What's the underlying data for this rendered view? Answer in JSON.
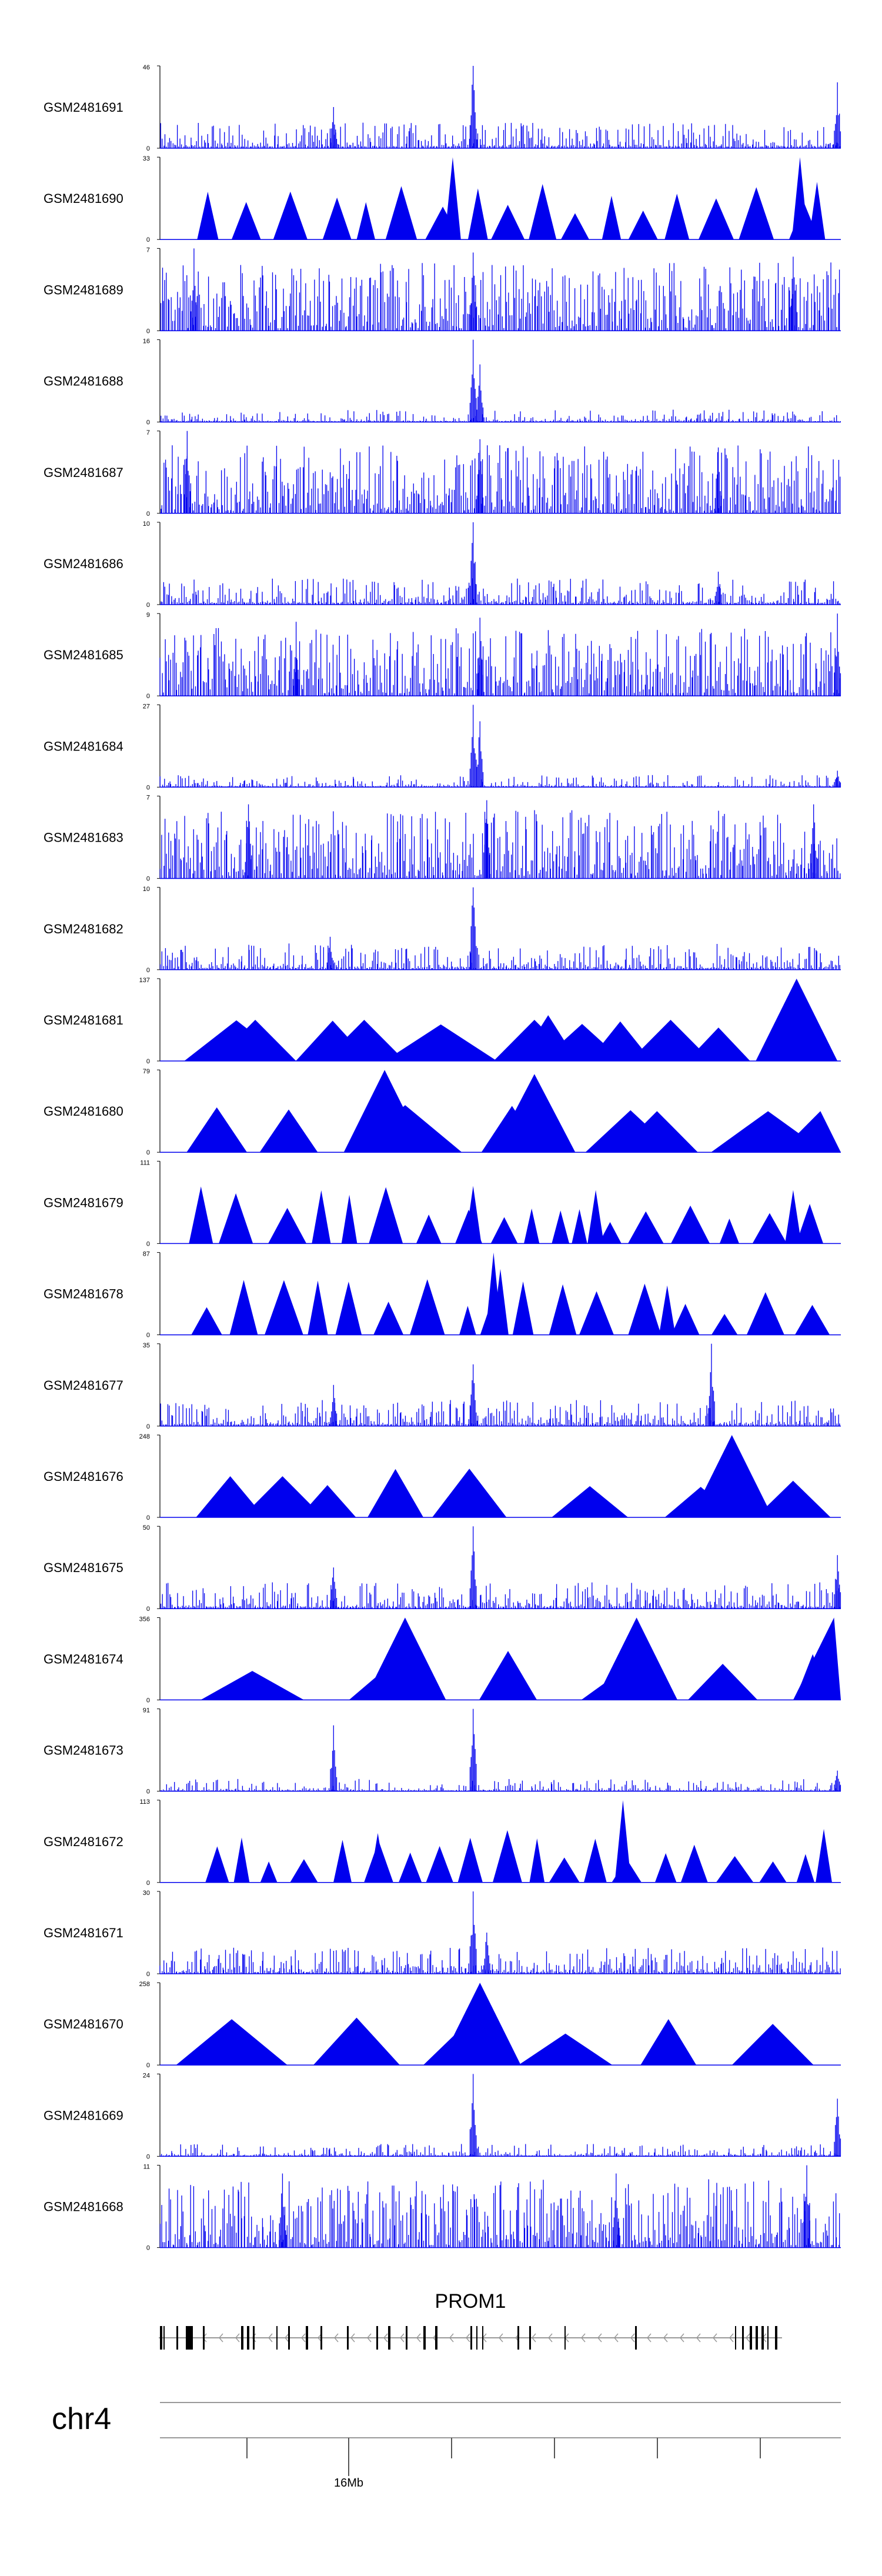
{
  "chart_data": {
    "type": "area",
    "title": "",
    "chromosome": "chr4",
    "x_tick_label": "16Mb",
    "colors": {
      "signal": "#0000ee",
      "axis": "#000000",
      "gene": "#000000",
      "intron": "#999999"
    },
    "style_codes": {
      "n": "noisy dense signal with one central peak",
      "u": "uniformly dense noisy signal",
      "c": "sparse signal with concentrated central peak",
      "t": "sparse triangular blocks (low coverage)",
      "w": "wide triangular blocks (very low coverage)"
    },
    "tracks": [
      {
        "name": "GSM2481691",
        "max": 46,
        "min": 0,
        "style": "n",
        "peaks": [
          [
            0.255,
            0.5
          ],
          [
            0.46,
            1.0
          ],
          [
            0.995,
            0.8
          ]
        ]
      },
      {
        "name": "GSM2481690",
        "max": 33,
        "min": 0,
        "style": "t",
        "peaks": [
          [
            0.43,
            1.0
          ],
          [
            0.94,
            1.0
          ],
          [
            0.965,
            0.7
          ]
        ]
      },
      {
        "name": "GSM2481689",
        "max": 7,
        "min": 0,
        "style": "u",
        "peaks": [
          [
            0.05,
            1.0
          ],
          [
            0.46,
            0.95
          ],
          [
            0.93,
            0.9
          ]
        ]
      },
      {
        "name": "GSM2481688",
        "max": 16,
        "min": 0,
        "style": "c",
        "peaks": [
          [
            0.46,
            1.0
          ],
          [
            0.47,
            0.7
          ]
        ]
      },
      {
        "name": "GSM2481687",
        "max": 7,
        "min": 0,
        "style": "u",
        "peaks": [
          [
            0.04,
            1.0
          ],
          [
            0.47,
            0.9
          ],
          [
            0.82,
            0.8
          ]
        ]
      },
      {
        "name": "GSM2481686",
        "max": 10,
        "min": 0,
        "style": "n",
        "peaks": [
          [
            0.46,
            1.0
          ],
          [
            0.82,
            0.4
          ]
        ]
      },
      {
        "name": "GSM2481685",
        "max": 9,
        "min": 0,
        "style": "u",
        "peaks": [
          [
            0.2,
            0.9
          ],
          [
            0.47,
            0.95
          ],
          [
            0.995,
            1.0
          ]
        ]
      },
      {
        "name": "GSM2481684",
        "max": 27,
        "min": 0,
        "style": "c",
        "peaks": [
          [
            0.46,
            1.0
          ],
          [
            0.47,
            0.8
          ],
          [
            0.995,
            0.2
          ]
        ]
      },
      {
        "name": "GSM2481683",
        "max": 7,
        "min": 0,
        "style": "u",
        "peaks": [
          [
            0.13,
            0.9
          ],
          [
            0.48,
            0.95
          ],
          [
            0.96,
            0.9
          ]
        ]
      },
      {
        "name": "GSM2481682",
        "max": 10,
        "min": 0,
        "style": "n",
        "peaks": [
          [
            0.46,
            1.0
          ],
          [
            0.25,
            0.4
          ]
        ]
      },
      {
        "name": "GSM2481681",
        "max": 137,
        "min": 0,
        "style": "w",
        "peaks": [
          [
            0.14,
            0.5
          ],
          [
            0.3,
            0.5
          ],
          [
            0.55,
            0.5
          ],
          [
            0.62,
            0.45
          ],
          [
            0.75,
            0.5
          ],
          [
            0.935,
            1.0
          ]
        ]
      },
      {
        "name": "GSM2481680",
        "max": 79,
        "min": 0,
        "style": "w",
        "peaks": [
          [
            0.33,
            1.0
          ],
          [
            0.55,
            0.95
          ],
          [
            0.73,
            0.5
          ],
          [
            0.97,
            0.5
          ]
        ]
      },
      {
        "name": "GSM2481679",
        "max": 111,
        "min": 0,
        "style": "t",
        "peaks": [
          [
            0.06,
            0.65
          ],
          [
            0.46,
            0.7
          ],
          [
            0.64,
            0.65
          ],
          [
            0.93,
            0.65
          ]
        ]
      },
      {
        "name": "GSM2481678",
        "max": 87,
        "min": 0,
        "style": "t",
        "peaks": [
          [
            0.49,
            1.0
          ],
          [
            0.5,
            0.8
          ],
          [
            0.745,
            0.6
          ]
        ]
      },
      {
        "name": "GSM2481677",
        "max": 35,
        "min": 0,
        "style": "n",
        "peaks": [
          [
            0.255,
            0.5
          ],
          [
            0.46,
            0.75
          ],
          [
            0.81,
            1.0
          ]
        ]
      },
      {
        "name": "GSM2481676",
        "max": 248,
        "min": 0,
        "style": "w",
        "peaks": [
          [
            0.18,
            0.5
          ],
          [
            0.84,
            1.0
          ]
        ]
      },
      {
        "name": "GSM2481675",
        "max": 50,
        "min": 0,
        "style": "n",
        "peaks": [
          [
            0.255,
            0.5
          ],
          [
            0.46,
            1.0
          ],
          [
            0.995,
            0.65
          ]
        ]
      },
      {
        "name": "GSM2481674",
        "max": 356,
        "min": 0,
        "style": "w",
        "peaks": [
          [
            0.36,
            1.0
          ],
          [
            0.7,
            1.0
          ],
          [
            0.99,
            1.0
          ]
        ]
      },
      {
        "name": "GSM2481673",
        "max": 91,
        "min": 0,
        "style": "c",
        "peaks": [
          [
            0.255,
            0.8
          ],
          [
            0.46,
            1.0
          ],
          [
            0.995,
            0.25
          ]
        ]
      },
      {
        "name": "GSM2481672",
        "max": 113,
        "min": 0,
        "style": "t",
        "peaks": [
          [
            0.32,
            0.6
          ],
          [
            0.68,
            1.0
          ],
          [
            0.975,
            0.65
          ]
        ]
      },
      {
        "name": "GSM2481671",
        "max": 30,
        "min": 0,
        "style": "n",
        "peaks": [
          [
            0.46,
            1.0
          ],
          [
            0.48,
            0.5
          ]
        ]
      },
      {
        "name": "GSM2481670",
        "max": 258,
        "min": 0,
        "style": "w",
        "peaks": [
          [
            0.47,
            1.0
          ],
          [
            0.9,
            0.5
          ]
        ]
      },
      {
        "name": "GSM2481669",
        "max": 24,
        "min": 0,
        "style": "c",
        "peaks": [
          [
            0.46,
            1.0
          ],
          [
            0.995,
            0.7
          ]
        ]
      },
      {
        "name": "GSM2481668",
        "max": 11,
        "min": 0,
        "style": "u",
        "peaks": [
          [
            0.18,
            0.9
          ],
          [
            0.67,
            0.9
          ],
          [
            0.95,
            1.0
          ]
        ]
      }
    ],
    "gene": {
      "name": "PROM1",
      "strand": "-"
    }
  }
}
